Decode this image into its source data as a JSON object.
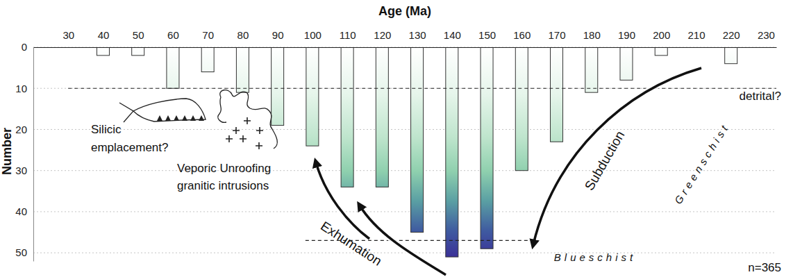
{
  "chart_data": {
    "type": "bar",
    "xlabel": "Age (Ma)",
    "ylabel": "Number",
    "x": [
      40,
      50,
      60,
      70,
      80,
      90,
      100,
      110,
      120,
      130,
      140,
      150,
      160,
      170,
      180,
      190,
      200,
      220
    ],
    "values": [
      2,
      2,
      10,
      6,
      11,
      19,
      24,
      34,
      34,
      45,
      51,
      49,
      30,
      23,
      11,
      8,
      2,
      4
    ],
    "xlim": [
      20,
      233
    ],
    "xticks": [
      30,
      40,
      50,
      60,
      70,
      80,
      90,
      100,
      110,
      120,
      130,
      140,
      150,
      160,
      170,
      180,
      190,
      200,
      210,
      220,
      230
    ],
    "ylim": [
      0,
      52
    ],
    "yticks": [
      0,
      10,
      20,
      30,
      40,
      50
    ],
    "grid": true,
    "reference_lines": [
      {
        "value": 10,
        "x": [
          30,
          233
        ]
      },
      {
        "value": 47,
        "x": [
          98,
          163
        ]
      }
    ],
    "annotations": [
      {
        "text": "detrital?"
      },
      {
        "lines": [
          "Silicic",
          "emplacement?"
        ]
      },
      {
        "lines": [
          "Veporic Unroofing",
          "granitic intrusions"
        ]
      },
      {
        "text": "Subduction"
      },
      {
        "text": "Exhumation"
      },
      {
        "text": "Greenschist"
      },
      {
        "text": "Blueschist"
      },
      {
        "text": "n=365"
      }
    ]
  }
}
